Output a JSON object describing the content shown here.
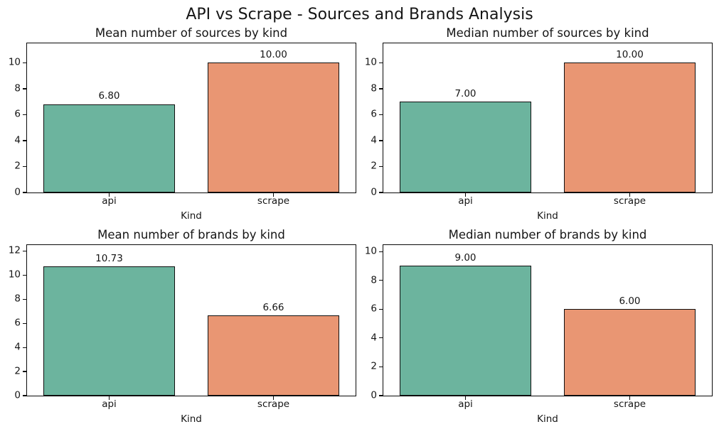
{
  "figure": {
    "suptitle": "API vs Scrape - Sources and Brands Analysis",
    "background": "#ffffff",
    "text_color": "#151515"
  },
  "palette": {
    "api": "#6CB49E",
    "scrape": "#E99673",
    "bar_edge": "#0f0f0f",
    "spine": "#0a0a0a"
  },
  "chart_data": [
    {
      "type": "bar",
      "title": "Mean number of sources by kind",
      "xlabel": "Kind",
      "ylabel": "",
      "categories": [
        "api",
        "scrape"
      ],
      "values": [
        6.8,
        10.0
      ],
      "value_labels": [
        "6.80",
        "10.00"
      ],
      "yticks": [
        0,
        2,
        4,
        6,
        8,
        10
      ],
      "ylim": [
        0,
        11.5
      ],
      "grid": false,
      "legend": "none"
    },
    {
      "type": "bar",
      "title": "Median number of sources by kind",
      "xlabel": "Kind",
      "ylabel": "",
      "categories": [
        "api",
        "scrape"
      ],
      "values": [
        7.0,
        10.0
      ],
      "value_labels": [
        "7.00",
        "10.00"
      ],
      "yticks": [
        0,
        2,
        4,
        6,
        8,
        10
      ],
      "ylim": [
        0,
        11.5
      ],
      "grid": false,
      "legend": "none"
    },
    {
      "type": "bar",
      "title": "Mean number of brands by kind",
      "xlabel": "Kind",
      "ylabel": "",
      "categories": [
        "api",
        "scrape"
      ],
      "values": [
        10.73,
        6.66
      ],
      "value_labels": [
        "10.73",
        "6.66"
      ],
      "yticks": [
        0,
        2,
        4,
        6,
        8,
        10,
        12
      ],
      "ylim": [
        0,
        12.5
      ],
      "grid": false,
      "legend": "none"
    },
    {
      "type": "bar",
      "title": "Median number of brands by kind",
      "xlabel": "Kind",
      "ylabel": "",
      "categories": [
        "api",
        "scrape"
      ],
      "values": [
        9.0,
        6.0
      ],
      "value_labels": [
        "9.00",
        "6.00"
      ],
      "yticks": [
        0,
        2,
        4,
        6,
        8,
        10
      ],
      "ylim": [
        0,
        10.45
      ],
      "grid": false,
      "legend": "none"
    }
  ]
}
